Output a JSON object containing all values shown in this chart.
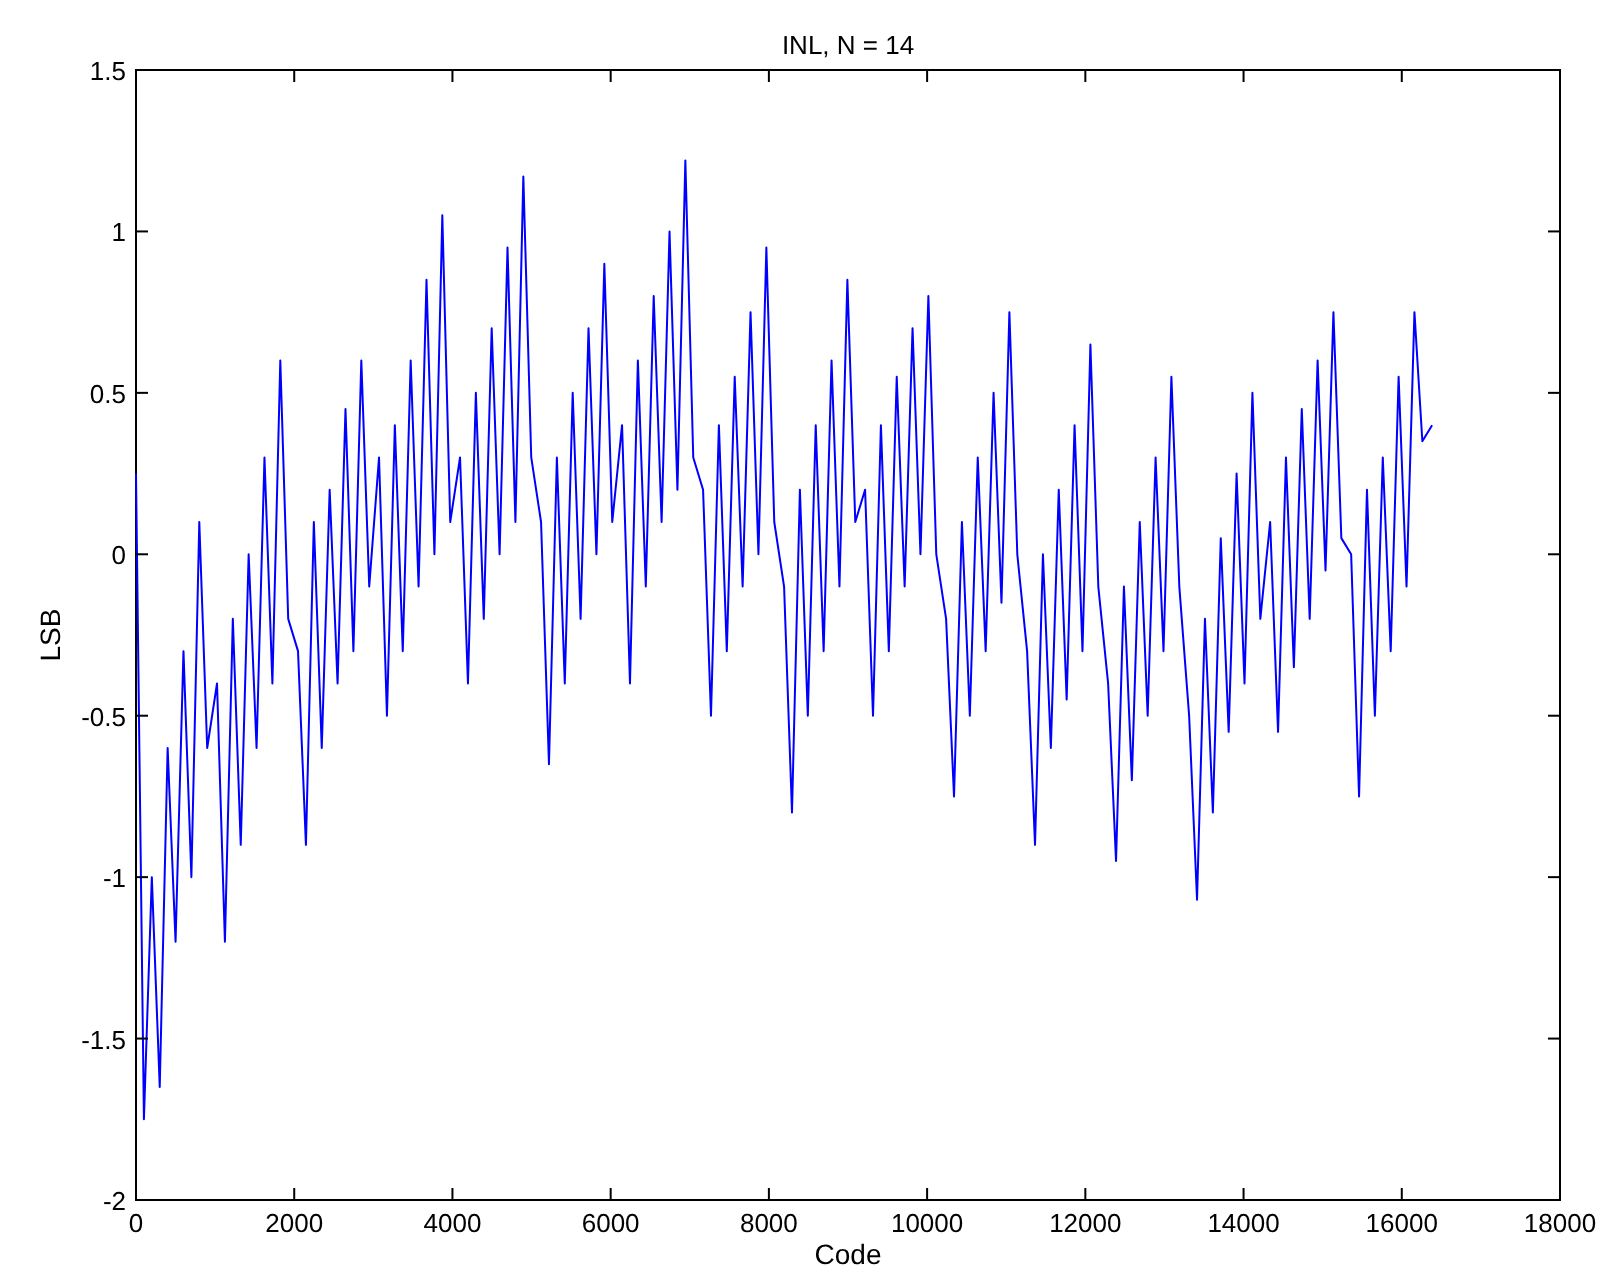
{
  "chart_data": {
    "type": "line",
    "title": "INL, N = 14",
    "xlabel": "Code",
    "ylabel": "LSB",
    "x": [
      0,
      100,
      200,
      300,
      400,
      500,
      600,
      700,
      800,
      900,
      1024,
      1124,
      1224,
      1324,
      1424,
      1524,
      1624,
      1724,
      1824,
      1924,
      2048,
      2148,
      2248,
      2348,
      2448,
      2548,
      2648,
      2748,
      2848,
      2948,
      3072,
      3172,
      3272,
      3372,
      3472,
      3572,
      3672,
      3772,
      3872,
      3972,
      4096,
      4196,
      4296,
      4396,
      4496,
      4596,
      4696,
      4796,
      4896,
      4996,
      5120,
      5220,
      5320,
      5420,
      5520,
      5620,
      5720,
      5820,
      5920,
      6020,
      6144,
      6244,
      6344,
      6444,
      6544,
      6644,
      6744,
      6844,
      6944,
      7044,
      7168,
      7268,
      7368,
      7468,
      7568,
      7668,
      7768,
      7868,
      7968,
      8068,
      8192,
      8292,
      8392,
      8492,
      8592,
      8692,
      8792,
      8892,
      8992,
      9092,
      9216,
      9316,
      9416,
      9516,
      9616,
      9716,
      9816,
      9916,
      10016,
      10116,
      10240,
      10340,
      10440,
      10540,
      10640,
      10740,
      10840,
      10940,
      11040,
      11140,
      11264,
      11364,
      11464,
      11564,
      11664,
      11764,
      11864,
      11964,
      12064,
      12164,
      12288,
      12388,
      12488,
      12588,
      12688,
      12788,
      12888,
      12988,
      13088,
      13188,
      13312,
      13412,
      13512,
      13612,
      13712,
      13812,
      13912,
      14012,
      14112,
      14212,
      14336,
      14436,
      14536,
      14636,
      14736,
      14836,
      14936,
      15036,
      15136,
      15236,
      15360,
      15460,
      15560,
      15660,
      15760,
      15860,
      15960,
      16060,
      16160,
      16260,
      16383
    ],
    "series": [
      {
        "color": "#0000ff",
        "values": [
          0.25,
          -1.75,
          -1.0,
          -1.65,
          -0.6,
          -1.2,
          -0.3,
          -1.0,
          0.1,
          -0.6,
          -0.4,
          -1.2,
          -0.2,
          -0.9,
          0.0,
          -0.6,
          0.3,
          -0.4,
          0.6,
          -0.2,
          -0.3,
          -0.9,
          0.1,
          -0.6,
          0.2,
          -0.4,
          0.45,
          -0.3,
          0.6,
          -0.1,
          0.3,
          -0.5,
          0.4,
          -0.3,
          0.6,
          -0.1,
          0.85,
          0.0,
          1.05,
          0.1,
          0.3,
          -0.4,
          0.5,
          -0.2,
          0.7,
          0.0,
          0.95,
          0.1,
          1.17,
          0.3,
          0.1,
          -0.65,
          0.3,
          -0.4,
          0.5,
          -0.2,
          0.7,
          0.0,
          0.9,
          0.1,
          0.4,
          -0.4,
          0.6,
          -0.1,
          0.8,
          0.1,
          1.0,
          0.2,
          1.22,
          0.3,
          0.2,
          -0.5,
          0.4,
          -0.3,
          0.55,
          -0.1,
          0.75,
          0.0,
          0.95,
          0.1,
          -0.1,
          -0.8,
          0.2,
          -0.5,
          0.4,
          -0.3,
          0.6,
          -0.1,
          0.85,
          0.1,
          0.2,
          -0.5,
          0.4,
          -0.3,
          0.55,
          -0.1,
          0.7,
          0.0,
          0.8,
          0.0,
          -0.2,
          -0.75,
          0.1,
          -0.5,
          0.3,
          -0.3,
          0.5,
          -0.15,
          0.75,
          0.0,
          -0.3,
          -0.9,
          0.0,
          -0.6,
          0.2,
          -0.45,
          0.4,
          -0.3,
          0.65,
          -0.1,
          -0.4,
          -0.95,
          -0.1,
          -0.7,
          0.1,
          -0.5,
          0.3,
          -0.3,
          0.55,
          -0.1,
          -0.5,
          -1.07,
          -0.2,
          -0.8,
          0.05,
          -0.55,
          0.25,
          -0.4,
          0.5,
          -0.2,
          0.1,
          -0.55,
          0.3,
          -0.35,
          0.45,
          -0.2,
          0.6,
          -0.05,
          0.75,
          0.05,
          0.0,
          -0.75,
          0.2,
          -0.5,
          0.3,
          -0.3,
          0.55,
          -0.1,
          0.75,
          0.35,
          0.4
        ]
      }
    ],
    "xlim": [
      0,
      18000
    ],
    "xticks": [
      0,
      2000,
      4000,
      6000,
      8000,
      10000,
      12000,
      14000,
      16000,
      18000
    ],
    "ylim": [
      -2,
      1.5
    ],
    "yticks": [
      -2,
      -1.5,
      -1,
      -0.5,
      0,
      0.5,
      1,
      1.5
    ]
  }
}
